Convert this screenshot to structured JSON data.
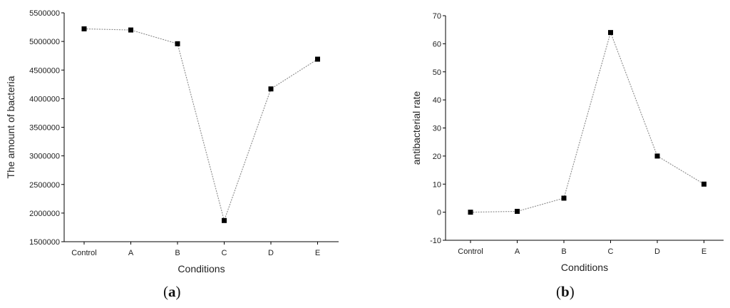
{
  "chart_data": [
    {
      "type": "line",
      "panel_label": "a",
      "categories": [
        "Control",
        "A",
        "B",
        "C",
        "D",
        "E"
      ],
      "series": [
        {
          "values": [
            5220000,
            5200000,
            4960000,
            1870000,
            4170000,
            4690000
          ]
        }
      ],
      "xlabel": "Conditions",
      "ylabel": "The amount of bacteria",
      "ylim": [
        1500000,
        5500000
      ],
      "yticks": [
        1500000,
        2000000,
        2500000,
        3000000,
        3500000,
        4000000,
        4500000,
        5000000,
        5500000
      ],
      "grid": false,
      "marker": "square",
      "color": "#000000",
      "line_color": "#8a8a8a"
    },
    {
      "type": "line",
      "panel_label": "b",
      "categories": [
        "Control",
        "A",
        "B",
        "C",
        "D",
        "E"
      ],
      "series": [
        {
          "values": [
            0,
            0.3,
            5,
            64,
            20,
            10
          ]
        }
      ],
      "xlabel": "Conditions",
      "ylabel": "antibacterial rate",
      "ylim": [
        -10,
        70
      ],
      "yticks": [
        -10,
        0,
        10,
        20,
        30,
        40,
        50,
        60,
        70
      ],
      "grid": false,
      "marker": "square",
      "color": "#000000",
      "line_color": "#8a8a8a"
    }
  ]
}
